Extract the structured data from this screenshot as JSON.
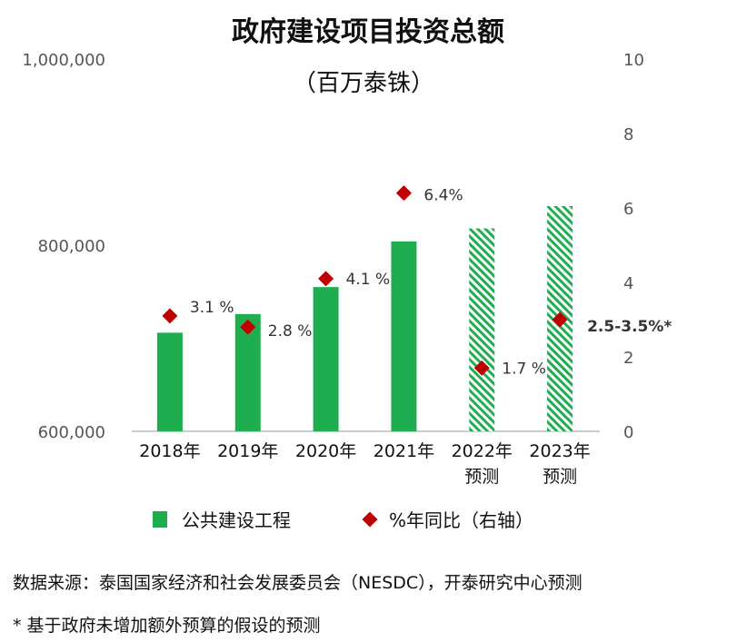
{
  "chart_data": {
    "type": "bar",
    "title": "政府建设项目投资总额",
    "subtitle": "（百万泰铢）",
    "categories": [
      "2018年",
      "2019年",
      "2020年",
      "2021年",
      "2022年\n预测",
      "2023年\n预测"
    ],
    "series": [
      {
        "name": "公共建设工程",
        "type": "bar",
        "axis": "left",
        "values": [
          706000,
          726000,
          755000,
          804000,
          818000,
          842000
        ],
        "forecast": [
          false,
          false,
          false,
          false,
          true,
          true
        ],
        "color": "#1fae4f"
      },
      {
        "name": "%年同比（右轴）",
        "type": "scatter",
        "axis": "right",
        "values": [
          3.1,
          2.8,
          4.1,
          6.4,
          1.7,
          3.0
        ],
        "labels": [
          "3.1 %",
          "2.8 %",
          "4.1 %",
          "6.4%",
          "1.7 %",
          "2.5-3.5%*"
        ],
        "color": "#c00000"
      }
    ],
    "ylim_left": [
      600000,
      1000000
    ],
    "yticks_left": [
      "600,000",
      "800,000",
      "1,000,000"
    ],
    "ylim_right": [
      0,
      10
    ],
    "yticks_right": [
      "0",
      "2",
      "4",
      "6",
      "8",
      "10"
    ],
    "grid": false,
    "legend": "bottom"
  },
  "notes": {
    "source": "数据来源：泰国国家经济和社会发展委员会（NESDC），开泰研究中心预测",
    "footnote": "* 基于政府未增加额外预算的假设的预测"
  }
}
